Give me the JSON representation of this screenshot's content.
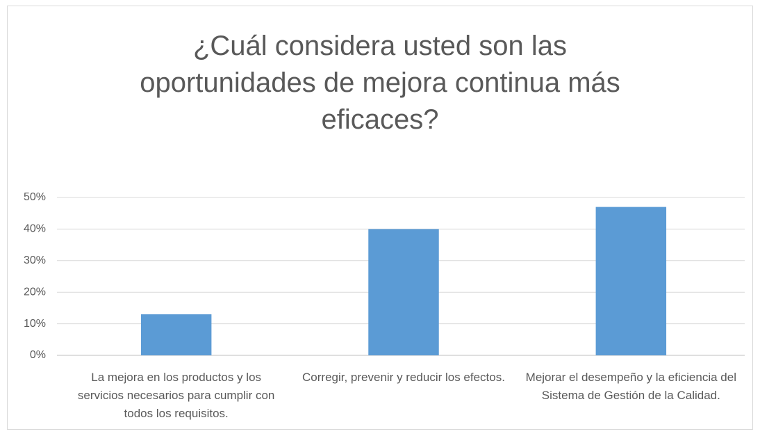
{
  "chart_data": {
    "type": "bar",
    "title": "¿Cuál considera usted son las oportunidades de mejora continua más eficaces?",
    "categories": [
      "La mejora en los productos y los servicios necesarios para cumplir con todos los requisitos.",
      "Corregir, prevenir y reducir los efectos.",
      "Mejorar el desempeño y la eficiencia del Sistema de Gestión de la Calidad."
    ],
    "values": [
      13,
      40,
      47
    ],
    "color": "#5b9bd5",
    "ylim": [
      0,
      50
    ],
    "yticks": [
      {
        "value": 0,
        "label": "0%"
      },
      {
        "value": 10,
        "label": "10%"
      },
      {
        "value": 20,
        "label": "20%"
      },
      {
        "value": 30,
        "label": "30%"
      },
      {
        "value": 40,
        "label": "40%"
      },
      {
        "value": 50,
        "label": "50%"
      }
    ],
    "grid": true
  }
}
